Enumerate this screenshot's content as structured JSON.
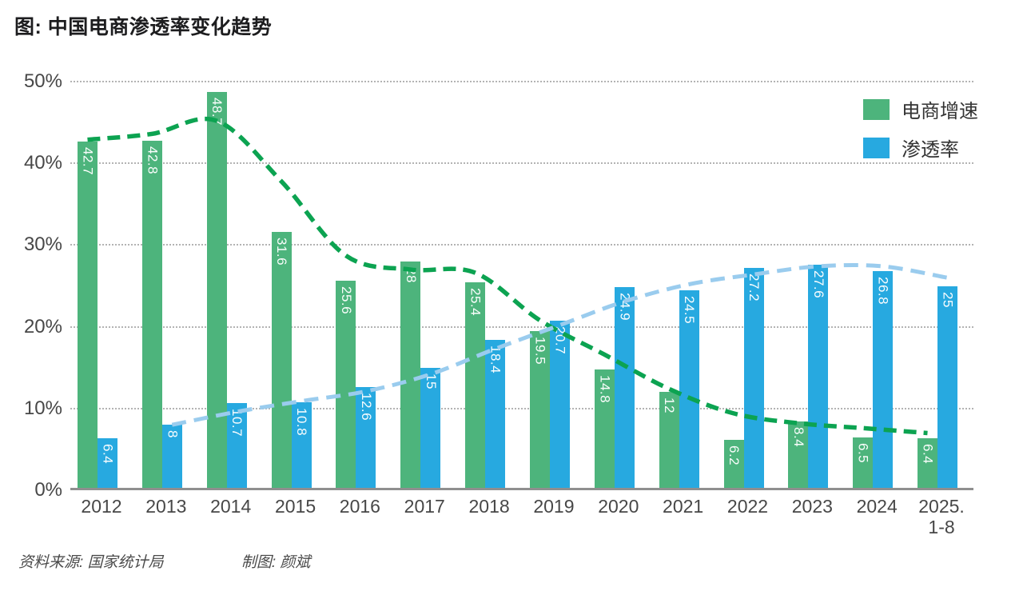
{
  "title": "图: 中国电商渗透率变化趋势",
  "footer": {
    "source": "资料来源: 国家统计局",
    "credit": "制图: 颜斌"
  },
  "chart_data": {
    "type": "bar",
    "title": "图: 中国电商渗透率变化趋势",
    "categories": [
      "2012",
      "2013",
      "2014",
      "2015",
      "2016",
      "2017",
      "2018",
      "2019",
      "2020",
      "2021",
      "2022",
      "2023",
      "2024",
      "2025.\n1-8"
    ],
    "series": [
      {
        "name": "电商增速",
        "color": "#4db47c",
        "values": [
          42.7,
          42.8,
          48.7,
          31.6,
          25.6,
          28,
          25.4,
          19.5,
          14.8,
          12,
          6.2,
          8.4,
          6.5,
          6.4
        ],
        "trend_color": "#0ca351",
        "trend_values": [
          42.9,
          43.6,
          45.2,
          37.8,
          28.7,
          27.0,
          26.6,
          20.8,
          16.6,
          12.4,
          9.4,
          8.2,
          7.6,
          7.0
        ]
      },
      {
        "name": "渗透率",
        "color": "#27a9e0",
        "values": [
          6.4,
          8,
          10.7,
          10.8,
          12.6,
          15,
          18.4,
          20.7,
          24.9,
          24.5,
          27.2,
          27.6,
          26.8,
          25
        ],
        "trend_color": "#9accee",
        "trend_values": [
          null,
          8.0,
          9.6,
          10.9,
          12.1,
          14.2,
          17.3,
          20.2,
          23.1,
          25.2,
          26.4,
          27.4,
          27.4,
          26.0
        ]
      }
    ],
    "xlabel": "",
    "ylabel": "",
    "ylim": [
      0,
      50
    ],
    "yticks": [
      {
        "label": "0%",
        "value": 0
      },
      {
        "label": "10%",
        "value": 10
      },
      {
        "label": "20%",
        "value": 20
      },
      {
        "label": "30%",
        "value": 30
      },
      {
        "label": "40%",
        "value": 40
      },
      {
        "label": "50%",
        "value": 50
      }
    ],
    "grid": "horizontal-dotted",
    "legend_position": "top-right"
  }
}
